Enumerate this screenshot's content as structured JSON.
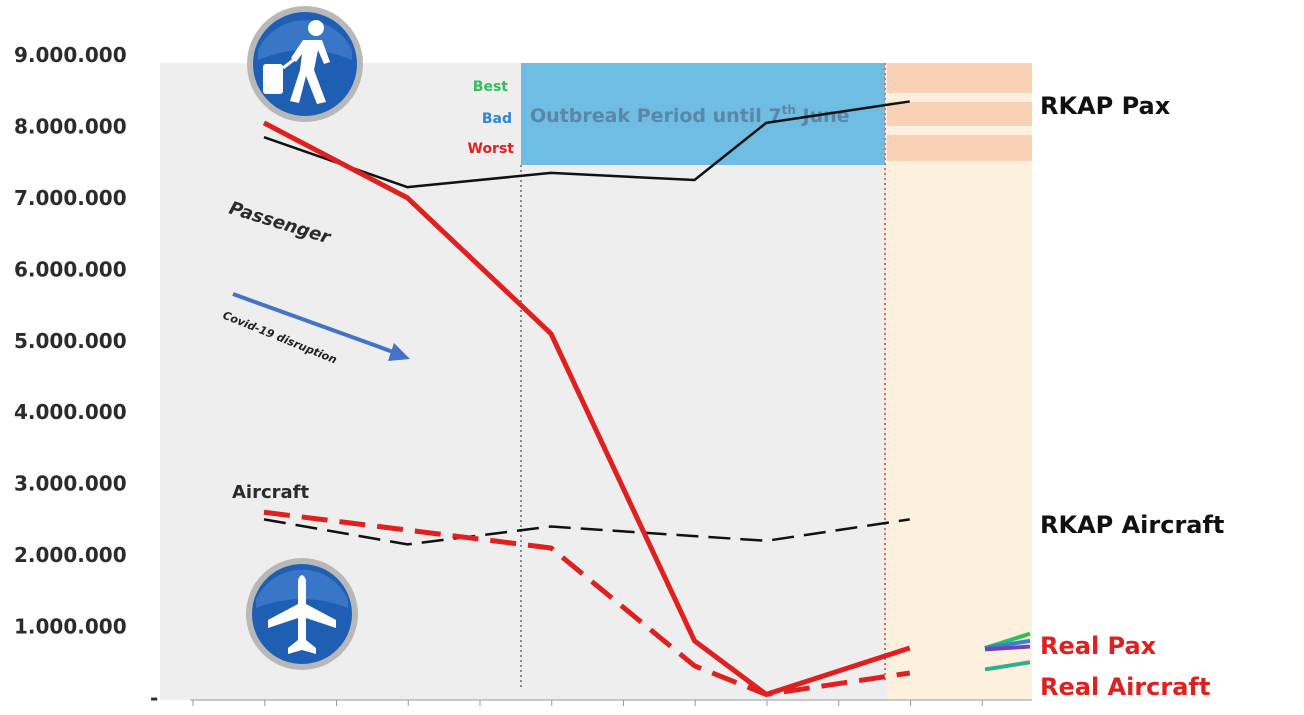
{
  "chart_data": {
    "type": "line",
    "title": "",
    "xlabel": "",
    "ylabel": "",
    "ylim": [
      0,
      9000000
    ],
    "y_ticks": [
      "9.000.000",
      "8.000.000",
      "7.000.000",
      "6.000.000",
      "5.000.000",
      "4.000.000",
      "3.000.000",
      "2.000.000",
      "1.000.000",
      "-"
    ],
    "x_count": 10,
    "grid": false,
    "series": [
      {
        "name": "RKAP Pax",
        "style": "solid",
        "color": "#111111",
        "x": [
          1,
          2,
          3,
          4,
          5,
          6,
          7,
          8,
          9,
          10
        ],
        "values": [
          7850000,
          null,
          7150000,
          null,
          7350000,
          null,
          7250000,
          8050000,
          null,
          8350000
        ]
      },
      {
        "name": "Real Pax",
        "style": "solid",
        "color": "#e0201f",
        "x": [
          1,
          2,
          3,
          4,
          5,
          6,
          7,
          8,
          9,
          10
        ],
        "values": [
          8050000,
          null,
          7000000,
          null,
          5100000,
          null,
          800000,
          50000,
          null,
          700000
        ]
      },
      {
        "name": "RKAP Aircraft",
        "style": "dashed",
        "color": "#111111",
        "x": [
          1,
          2,
          3,
          4,
          5,
          6,
          7,
          8,
          9,
          10
        ],
        "values": [
          2500000,
          null,
          2150000,
          null,
          2400000,
          null,
          null,
          2200000,
          null,
          2500000
        ]
      },
      {
        "name": "Real Aircraft",
        "style": "dashed",
        "color": "#e0201f",
        "x": [
          1,
          2,
          3,
          4,
          5,
          6,
          7,
          8,
          9,
          10
        ],
        "values": [
          2600000,
          null,
          null,
          null,
          2100000,
          null,
          450000,
          50000,
          null,
          350000
        ]
      }
    ],
    "scenario_legend": [
      {
        "label": "Best",
        "color": "#2fbf5a"
      },
      {
        "label": "Bad",
        "color": "#2f86d6"
      },
      {
        "label": "Worst",
        "color": "#e0201f"
      }
    ],
    "scenario_tips": [
      {
        "color": "#2fbf5a",
        "values": [
          700000,
          900000
        ]
      },
      {
        "color": "#2f86d6",
        "values": [
          700000,
          800000
        ]
      },
      {
        "color": "#2fae8f",
        "values": [
          400000,
          500000
        ]
      },
      {
        "color": "#7a3fb0",
        "values": [
          680000,
          720000
        ]
      }
    ],
    "annotations": {
      "outbreak": "Outbreak Period until 7",
      "outbreak_sup": "th",
      "outbreak_end": " June",
      "passenger": "Passenger",
      "aircraft": "Aircraft",
      "disruption": "Covid-19 disruption"
    },
    "colors": {
      "plot_bg": "#eeeeee",
      "outbreak_bg": "#6fbde3",
      "forecast_bg": "#fdf0dc",
      "forecast_band": "#f9d1b4",
      "arrow": "#4472c4",
      "vline_dotted": "#888888",
      "vline_orange": "#f07030"
    },
    "icons": [
      "passenger-icon",
      "airplane-icon"
    ]
  }
}
